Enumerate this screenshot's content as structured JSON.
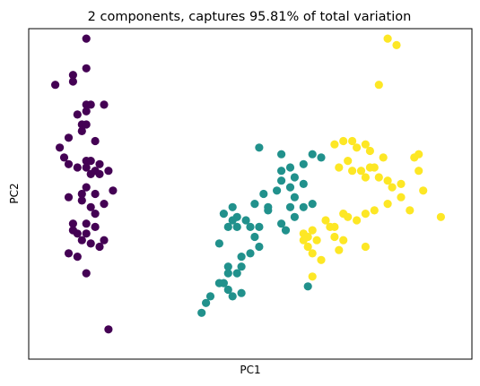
{
  "chart_data": {
    "type": "scatter",
    "title": "2 components, captures 95.81% of total variation",
    "xlabel": "PC1",
    "ylabel": "PC2",
    "xlim": [
      0,
      100
    ],
    "ylim": [
      0,
      100
    ],
    "ticks": "hidden",
    "grid": false,
    "legend": "none",
    "series": [
      {
        "color": "#440154",
        "points": [
          [
            13,
            97
          ],
          [
            10,
            86
          ],
          [
            10,
            84
          ],
          [
            13,
            88
          ],
          [
            13,
            77
          ],
          [
            13,
            75
          ],
          [
            6,
            83
          ],
          [
            14,
            77
          ],
          [
            11,
            74
          ],
          [
            12,
            69
          ],
          [
            9,
            67
          ],
          [
            7,
            64
          ],
          [
            15,
            66
          ],
          [
            17,
            77
          ],
          [
            12,
            71
          ],
          [
            13,
            71
          ],
          [
            8,
            61
          ],
          [
            9,
            59
          ],
          [
            11,
            58
          ],
          [
            13,
            60
          ],
          [
            15,
            57
          ],
          [
            16,
            59
          ],
          [
            14,
            60
          ],
          [
            13,
            58
          ],
          [
            14,
            56
          ],
          [
            16,
            56
          ],
          [
            18,
            57
          ],
          [
            13,
            52
          ],
          [
            12,
            50
          ],
          [
            15,
            50
          ],
          [
            19,
            51
          ],
          [
            9,
            49
          ],
          [
            12,
            48
          ],
          [
            14,
            46
          ],
          [
            17,
            47
          ],
          [
            10,
            41
          ],
          [
            13,
            41
          ],
          [
            15,
            44
          ],
          [
            11,
            38
          ],
          [
            13,
            38
          ],
          [
            15,
            40
          ],
          [
            12,
            36
          ],
          [
            14,
            35
          ],
          [
            16,
            34
          ],
          [
            17,
            36
          ],
          [
            11,
            31
          ],
          [
            9,
            32
          ],
          [
            13,
            26
          ],
          [
            18,
            9
          ],
          [
            10,
            39
          ]
        ]
      },
      {
        "color": "#21918c",
        "points": [
          [
            52,
            64
          ],
          [
            57,
            62
          ],
          [
            57,
            57
          ],
          [
            57,
            54
          ],
          [
            59,
            58
          ],
          [
            60,
            55
          ],
          [
            59,
            52
          ],
          [
            56,
            51
          ],
          [
            53,
            50
          ],
          [
            54,
            46
          ],
          [
            51,
            47
          ],
          [
            46,
            46
          ],
          [
            47,
            43
          ],
          [
            49,
            42
          ],
          [
            46,
            42
          ],
          [
            45,
            40
          ],
          [
            47,
            40
          ],
          [
            50,
            40
          ],
          [
            52,
            40
          ],
          [
            54,
            45
          ],
          [
            60,
            49
          ],
          [
            62,
            53
          ],
          [
            64,
            47
          ],
          [
            62,
            46
          ],
          [
            59,
            46
          ],
          [
            60,
            43
          ],
          [
            57,
            41
          ],
          [
            58,
            39
          ],
          [
            51,
            37
          ],
          [
            52,
            34
          ],
          [
            50,
            32
          ],
          [
            48,
            31
          ],
          [
            48,
            28
          ],
          [
            47,
            26
          ],
          [
            45,
            26
          ],
          [
            43,
            23
          ],
          [
            44,
            23
          ],
          [
            45,
            21
          ],
          [
            48,
            20
          ],
          [
            46,
            19
          ],
          [
            41,
            19
          ],
          [
            40,
            17
          ],
          [
            39,
            14
          ],
          [
            45,
            28
          ],
          [
            43,
            35
          ],
          [
            44,
            44
          ],
          [
            64,
            62
          ],
          [
            66,
            61
          ],
          [
            62,
            59
          ],
          [
            63,
            22
          ]
        ]
      },
      {
        "color": "#fde725",
        "points": [
          [
            81,
            97
          ],
          [
            83,
            95
          ],
          [
            79,
            83
          ],
          [
            69,
            65
          ],
          [
            71,
            66
          ],
          [
            73,
            66
          ],
          [
            74,
            64
          ],
          [
            76,
            65
          ],
          [
            77,
            63
          ],
          [
            72,
            60
          ],
          [
            70,
            58
          ],
          [
            73,
            57
          ],
          [
            75,
            57
          ],
          [
            77,
            58
          ],
          [
            76,
            55
          ],
          [
            80,
            61
          ],
          [
            78,
            58
          ],
          [
            79,
            55
          ],
          [
            81,
            54
          ],
          [
            82,
            52
          ],
          [
            84,
            53
          ],
          [
            87,
            61
          ],
          [
            88,
            62
          ],
          [
            88,
            57
          ],
          [
            84,
            49
          ],
          [
            86,
            45
          ],
          [
            89,
            51
          ],
          [
            93,
            43
          ],
          [
            81,
            47
          ],
          [
            78,
            45
          ],
          [
            76,
            44
          ],
          [
            74,
            42
          ],
          [
            71,
            44
          ],
          [
            72,
            43
          ],
          [
            67,
            42
          ],
          [
            68,
            40
          ],
          [
            69,
            40
          ],
          [
            64,
            39
          ],
          [
            62,
            38
          ],
          [
            63,
            37
          ],
          [
            69,
            37
          ],
          [
            71,
            36
          ],
          [
            65,
            36
          ],
          [
            62,
            36
          ],
          [
            63,
            34
          ],
          [
            64,
            32
          ],
          [
            66,
            30
          ],
          [
            64,
            25
          ],
          [
            70,
            33
          ],
          [
            76,
            34
          ]
        ]
      }
    ]
  }
}
